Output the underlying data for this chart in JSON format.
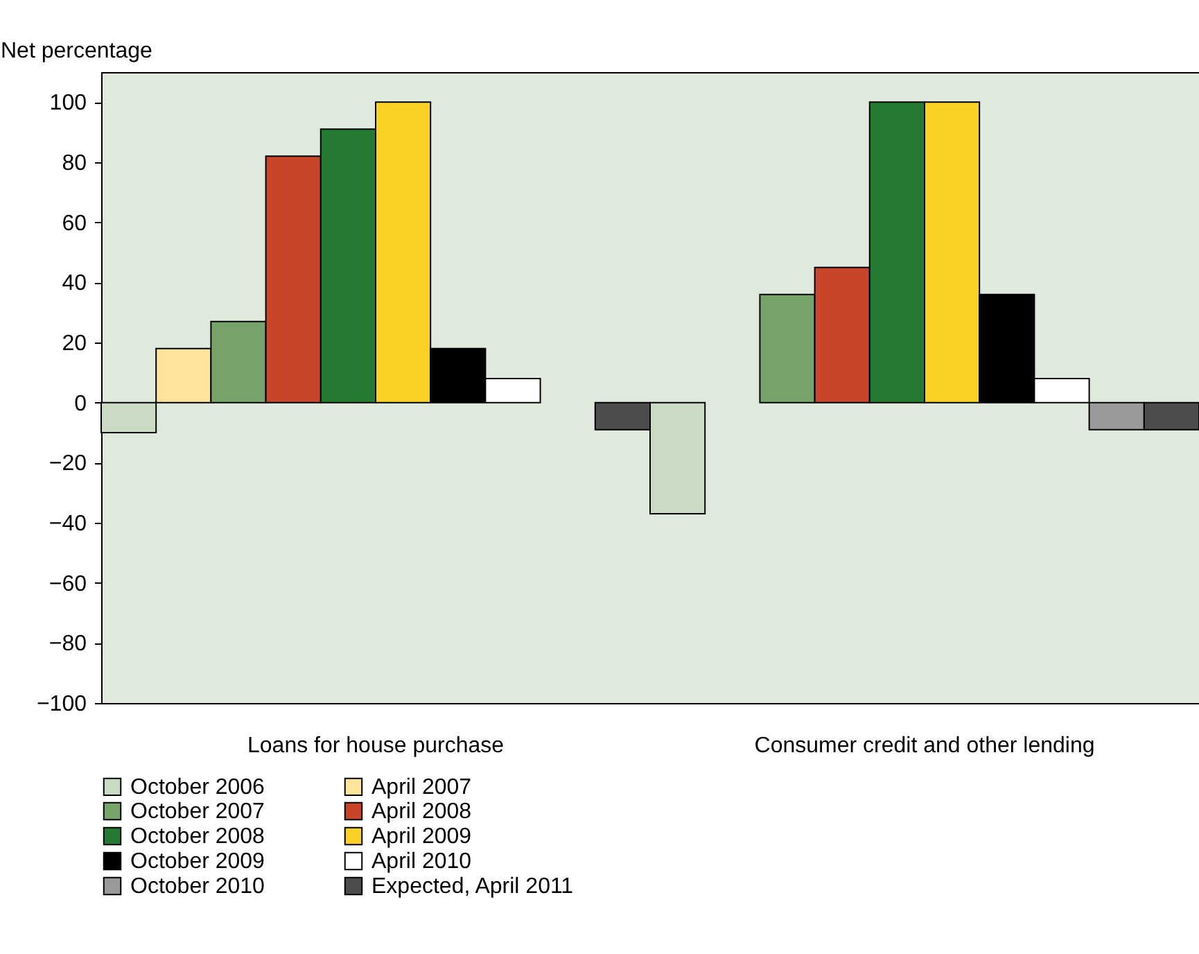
{
  "chart_data": {
    "type": "bar",
    "ylabel": "Net percentage",
    "categories": [
      "Loans for house purchase",
      "Consumer credit and other lending"
    ],
    "series": [
      {
        "name": "October 2006",
        "color": "#c9dcc3",
        "values": [
          -10,
          -37
        ]
      },
      {
        "name": "April 2007",
        "color": "#fde49a",
        "values": [
          18,
          null
        ]
      },
      {
        "name": "October 2007",
        "color": "#76a46a",
        "values": [
          27,
          36
        ]
      },
      {
        "name": "April 2008",
        "color": "#c8452a",
        "values": [
          82,
          45
        ]
      },
      {
        "name": "October 2008",
        "color": "#237a30",
        "values": [
          91,
          100
        ]
      },
      {
        "name": "April 2009",
        "color": "#fbd126",
        "values": [
          100,
          100
        ]
      },
      {
        "name": "October 2009",
        "color": "#000000",
        "values": [
          18,
          36
        ]
      },
      {
        "name": "April 2010",
        "color": "#ffffff",
        "values": [
          8,
          8
        ]
      },
      {
        "name": "October 2010",
        "color": "#9a9a9a",
        "values": [
          null,
          -9
        ]
      },
      {
        "name": "Expected, April 2011",
        "color": "#4d4d4d",
        "values": [
          -9,
          -9
        ]
      }
    ],
    "ylim": [
      -100,
      110
    ],
    "yticks": [
      -100,
      -80,
      -60,
      -40,
      -20,
      0,
      20,
      40,
      60,
      80,
      100
    ],
    "grid": false,
    "legend": "bottom left"
  }
}
